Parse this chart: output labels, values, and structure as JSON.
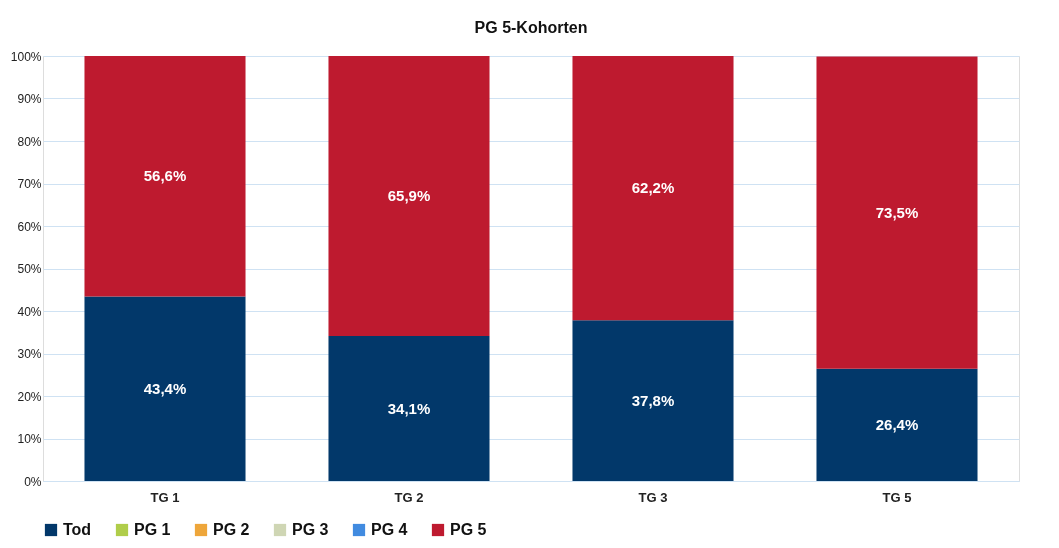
{
  "chart_data": {
    "type": "bar",
    "title": "PG 5-Kohorten",
    "stacked": true,
    "categories": [
      "TG 1",
      "TG 2",
      "TG 3",
      "TG 5"
    ],
    "series": [
      {
        "name": "Tod",
        "color": "#02386a",
        "values": [
          43.4,
          34.1,
          37.8,
          26.4
        ],
        "value_labels": [
          "43,4%",
          "34,1%",
          "37,8%",
          "26,4%"
        ]
      },
      {
        "name": "PG 1",
        "color": "#b0cd4a",
        "values": [
          null,
          null,
          null,
          null
        ]
      },
      {
        "name": "PG 2",
        "color": "#eea63a",
        "values": [
          null,
          null,
          null,
          null
        ]
      },
      {
        "name": "PG 3",
        "color": "#cfd6b4",
        "values": [
          null,
          null,
          null,
          null
        ]
      },
      {
        "name": "PG 4",
        "color": "#418be0",
        "values": [
          null,
          null,
          null,
          null
        ]
      },
      {
        "name": "PG 5",
        "color": "#be1a2f",
        "values": [
          56.6,
          65.9,
          62.2,
          73.5
        ],
        "value_labels": [
          "56,6%",
          "65,9%",
          "62,2%",
          "73,5%"
        ]
      }
    ],
    "ylim": [
      0,
      100
    ],
    "yticks": [
      {
        "value": 0,
        "label": "0%"
      },
      {
        "value": 10,
        "label": "10%"
      },
      {
        "value": 20,
        "label": "20%"
      },
      {
        "value": 30,
        "label": "30%"
      },
      {
        "value": 40,
        "label": "40%"
      },
      {
        "value": 50,
        "label": "50%"
      },
      {
        "value": 60,
        "label": "60%"
      },
      {
        "value": 70,
        "label": "70%"
      },
      {
        "value": 80,
        "label": "80%"
      },
      {
        "value": 90,
        "label": "90%"
      },
      {
        "value": 100,
        "label": "100%"
      }
    ],
    "grid": "y",
    "legend": "bottom"
  }
}
